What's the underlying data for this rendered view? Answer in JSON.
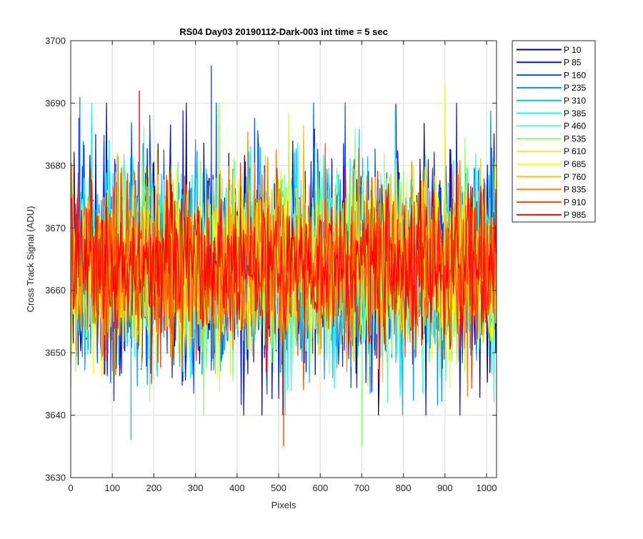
{
  "chart_data": {
    "type": "line",
    "title": "RS04 Day03 20190112-Dark-003 int time = 5 sec",
    "xlabel": "Pixels",
    "ylabel": "Cross Track Signal (ADU)",
    "xlim": [
      0,
      1024
    ],
    "ylim": [
      3630,
      3700
    ],
    "xticks": [
      0,
      100,
      200,
      300,
      400,
      500,
      600,
      700,
      800,
      900,
      1000
    ],
    "yticks": [
      3630,
      3640,
      3650,
      3660,
      3670,
      3680,
      3690,
      3700
    ],
    "grid": true,
    "legend_position": "outside-top-right",
    "noise_model": {
      "mean": 3664,
      "std_dev": 8,
      "min_observed": 3635,
      "max_observed": 3696
    },
    "series": [
      {
        "name": "P 10",
        "color": "#00008f"
      },
      {
        "name": "P 85",
        "color": "#0010ff"
      },
      {
        "name": "P 160",
        "color": "#0050ff"
      },
      {
        "name": "P 235",
        "color": "#0090ff"
      },
      {
        "name": "P 310",
        "color": "#00c0ff"
      },
      {
        "name": "P 385",
        "color": "#10ffef"
      },
      {
        "name": "P 460",
        "color": "#60ffc0"
      },
      {
        "name": "P 535",
        "color": "#90ff70"
      },
      {
        "name": "P 610",
        "color": "#d0ff30"
      },
      {
        "name": "P 685",
        "color": "#ffff00"
      },
      {
        "name": "P 760",
        "color": "#ffc000"
      },
      {
        "name": "P 835",
        "color": "#ff8000"
      },
      {
        "name": "P 910",
        "color": "#ff4000"
      },
      {
        "name": "P 985",
        "color": "#ff0000"
      }
    ],
    "highlights": [
      {
        "x": 338,
        "y": 3696
      },
      {
        "x": 700,
        "y": 3635
      },
      {
        "x": 512,
        "y": 3635
      },
      {
        "x": 22,
        "y": 3691
      },
      {
        "x": 900,
        "y": 3693
      },
      {
        "x": 165,
        "y": 3692
      },
      {
        "x": 145,
        "y": 3636
      }
    ]
  }
}
